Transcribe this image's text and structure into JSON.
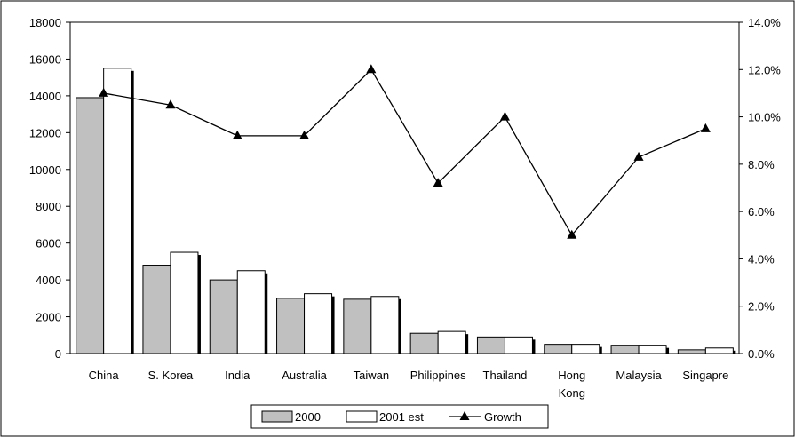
{
  "chart_data": {
    "type": "bar",
    "categories": [
      "China",
      "S. Korea",
      "India",
      "Australia",
      "Taiwan",
      "Philippines",
      "Thailand",
      "Hong Kong",
      "Malaysia",
      "Singapre"
    ],
    "category_lines": [
      [
        "China"
      ],
      [
        "S. Korea"
      ],
      [
        "India"
      ],
      [
        "Australia"
      ],
      [
        "Taiwan"
      ],
      [
        "Philippines"
      ],
      [
        "Thailand"
      ],
      [
        "Hong",
        "Kong"
      ],
      [
        "Malaysia"
      ],
      [
        "Singapre"
      ]
    ],
    "series": [
      {
        "name": "2000",
        "type": "bar",
        "axis": "left",
        "color": "#c0c0c0",
        "values": [
          13900,
          4800,
          4000,
          3000,
          2950,
          1100,
          900,
          500,
          450,
          200
        ]
      },
      {
        "name": "2001 est",
        "type": "bar",
        "axis": "left",
        "color": "#ffffff",
        "values": [
          15500,
          5500,
          4500,
          3250,
          3100,
          1200,
          900,
          500,
          450,
          300
        ]
      },
      {
        "name": "Growth",
        "type": "line",
        "axis": "right",
        "color": "#000000",
        "marker": "triangle",
        "values": [
          11.0,
          10.5,
          9.2,
          9.2,
          12.0,
          7.2,
          10.0,
          5.0,
          8.3,
          9.5
        ]
      }
    ],
    "y_left": {
      "min": 0,
      "max": 18000,
      "step": 2000,
      "ticks": [
        "0",
        "2000",
        "4000",
        "6000",
        "8000",
        "10000",
        "12000",
        "14000",
        "16000",
        "18000"
      ]
    },
    "y_right": {
      "min": 0,
      "max": 14,
      "step": 2,
      "ticks": [
        "0.0%",
        "2.0%",
        "4.0%",
        "6.0%",
        "8.0%",
        "10.0%",
        "12.0%",
        "14.0%"
      ]
    },
    "legend_position": "bottom",
    "grid": false
  }
}
